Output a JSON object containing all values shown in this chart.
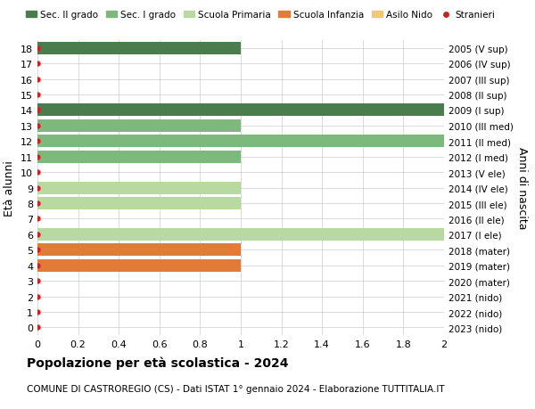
{
  "ages": [
    0,
    1,
    2,
    3,
    4,
    5,
    6,
    7,
    8,
    9,
    10,
    11,
    12,
    13,
    14,
    15,
    16,
    17,
    18
  ],
  "right_labels": [
    "2023 (nido)",
    "2022 (nido)",
    "2021 (nido)",
    "2020 (mater)",
    "2019 (mater)",
    "2018 (mater)",
    "2017 (I ele)",
    "2016 (II ele)",
    "2015 (III ele)",
    "2014 (IV ele)",
    "2013 (V ele)",
    "2012 (I med)",
    "2011 (II med)",
    "2010 (III med)",
    "2009 (I sup)",
    "2008 (II sup)",
    "2007 (III sup)",
    "2006 (IV sup)",
    "2005 (V sup)"
  ],
  "bar_values": [
    0,
    0,
    0,
    0,
    1.0,
    1.0,
    2.0,
    0,
    1.0,
    1.0,
    0,
    1.0,
    2.0,
    1.0,
    2.0,
    0,
    0,
    0,
    1.0
  ],
  "bar_colors": [
    "#f2c96e",
    "#f2c96e",
    "#f2c96e",
    "#e07b39",
    "#e07b39",
    "#e07b39",
    "#b8d9a0",
    "#b8d9a0",
    "#b8d9a0",
    "#b8d9a0",
    "#b8d9a0",
    "#7db87d",
    "#7db87d",
    "#7db87d",
    "#4a7c4e",
    "#4a7c4e",
    "#4a7c4e",
    "#4a7c4e",
    "#4a7c4e"
  ],
  "legend_labels": [
    "Sec. II grado",
    "Sec. I grado",
    "Scuola Primaria",
    "Scuola Infanzia",
    "Asilo Nido",
    "Stranieri"
  ],
  "legend_colors": [
    "#4a7c4e",
    "#7db87d",
    "#b8d9a0",
    "#e07b39",
    "#f2c96e",
    "#cc2222"
  ],
  "ylabel_left": "Età alunni",
  "ylabel_right": "Anni di nascita",
  "title_bold": "Popolazione per età scolastica - 2024",
  "subtitle": "COMUNE DI CASTROREGIO (CS) - Dati ISTAT 1° gennaio 2024 - Elaborazione TUTTITALIA.IT",
  "xlim": [
    0,
    2.0
  ],
  "xticks": [
    0,
    0.2,
    0.4,
    0.6,
    0.8,
    1.0,
    1.2,
    1.4,
    1.6,
    1.8,
    2.0
  ],
  "bar_height": 0.8,
  "dot_color": "#cc2222",
  "background_color": "#ffffff",
  "grid_color": "#cccccc"
}
